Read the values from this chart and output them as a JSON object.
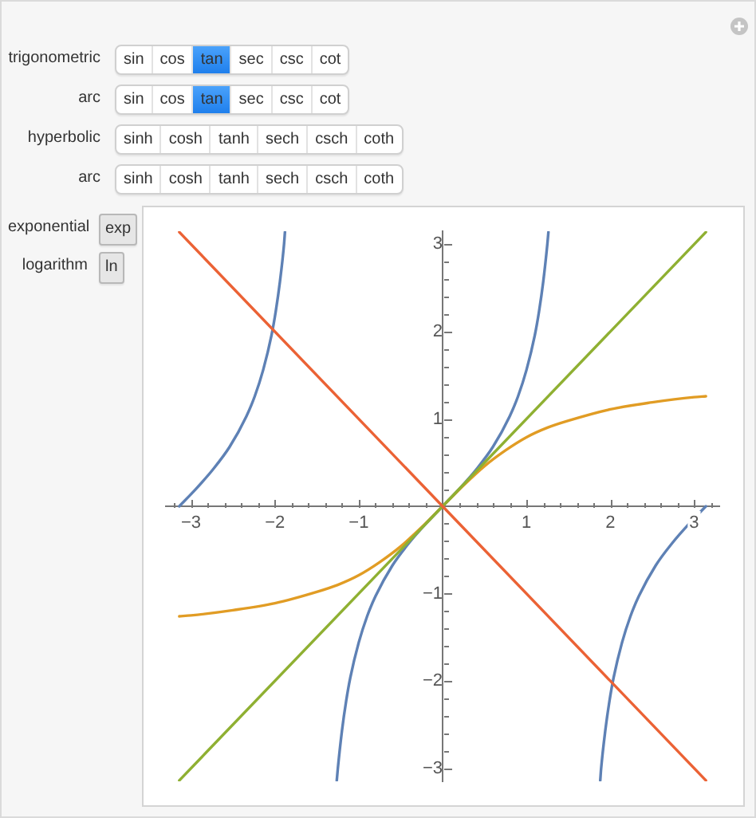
{
  "chart_data": [
    {
      "type": "other",
      "annotations": [
        "trigonometric",
        "sin",
        "cos",
        "tan",
        "sec",
        "csc",
        "cot",
        "arc",
        "sin",
        "cos",
        "tan",
        "sec",
        "csc",
        "cot",
        "hyperbolic",
        "sinh",
        "cosh",
        "tanh",
        "sech",
        "csch",
        "coth",
        "arc",
        "sinh",
        "cosh",
        "tanh",
        "sech",
        "csch",
        "coth",
        "exponential",
        "exp",
        "logarithm",
        "ln"
      ]
    },
    {
      "type": "line",
      "xlim": [
        -3.3,
        3.3
      ],
      "ylim": [
        -3.15,
        3.15
      ],
      "xticks": [
        {
          "value": -3.2,
          "label": null
        },
        {
          "value": -3,
          "label": "−3"
        },
        {
          "value": -2.8,
          "label": null
        },
        {
          "value": -2.6,
          "label": null
        },
        {
          "value": -2.4,
          "label": null
        },
        {
          "value": -2.2,
          "label": null
        },
        {
          "value": -2,
          "label": "−2"
        },
        {
          "value": -1.8,
          "label": null
        },
        {
          "value": -1.6,
          "label": null
        },
        {
          "value": -1.4,
          "label": null
        },
        {
          "value": -1.2,
          "label": null
        },
        {
          "value": -1,
          "label": "−1"
        },
        {
          "value": -0.8,
          "label": null
        },
        {
          "value": -0.6,
          "label": null
        },
        {
          "value": -0.4,
          "label": null
        },
        {
          "value": -0.2,
          "label": null
        },
        {
          "value": 0.2,
          "label": null
        },
        {
          "value": 0.4,
          "label": null
        },
        {
          "value": 0.6,
          "label": null
        },
        {
          "value": 0.8,
          "label": null
        },
        1,
        {
          "value": 1.2,
          "label": null
        },
        {
          "value": 1.4,
          "label": null
        },
        {
          "value": 1.6,
          "label": null
        },
        {
          "value": 1.8,
          "label": null
        },
        2,
        {
          "value": 2.2,
          "label": null
        },
        {
          "value": 2.4,
          "label": null
        },
        {
          "value": 2.6,
          "label": null
        },
        {
          "value": 2.8,
          "label": null
        },
        3,
        {
          "value": 3.2,
          "label": null
        }
      ],
      "yticks": [
        {
          "value": -3,
          "label": "−3"
        },
        {
          "value": -2.8,
          "label": null
        },
        {
          "value": -2.6,
          "label": null
        },
        {
          "value": -2.4,
          "label": null
        },
        {
          "value": -2.2,
          "label": null
        },
        {
          "value": -2,
          "label": "−2"
        },
        {
          "value": -1.8,
          "label": null
        },
        {
          "value": -1.6,
          "label": null
        },
        {
          "value": -1.4,
          "label": null
        },
        {
          "value": -1.2,
          "label": null
        },
        {
          "value": -1,
          "label": "−1"
        },
        {
          "value": -0.8,
          "label": null
        },
        {
          "value": -0.6,
          "label": null
        },
        {
          "value": -0.4,
          "label": null
        },
        {
          "value": -0.2,
          "label": null
        },
        {
          "value": 0.2,
          "label": null
        },
        {
          "value": 0.4,
          "label": null
        },
        {
          "value": 0.6,
          "label": null
        },
        {
          "value": 0.8,
          "label": null
        },
        1,
        {
          "value": 1.2,
          "label": null
        },
        {
          "value": 1.4,
          "label": null
        },
        {
          "value": 1.6,
          "label": null
        },
        {
          "value": 1.8,
          "label": null
        },
        2,
        {
          "value": 2.2,
          "label": null
        },
        {
          "value": 2.4,
          "label": null
        },
        {
          "value": 2.6,
          "label": null
        },
        {
          "value": 2.8,
          "label": null
        },
        3
      ],
      "series": [
        {
          "color": "#5e81b5",
          "x": [
            -3.14,
            -2.94,
            -2.74,
            -2.54,
            -2.34,
            -2.24,
            -2.14,
            -2.04,
            -1.99,
            -1.94,
            -1.89,
            -1.88,
            -1.57,
            -1.262,
            -1.25,
            -1.2,
            -1.15,
            -1.1,
            -1.0,
            -0.9,
            -0.8,
            -0.6,
            -0.4,
            -0.2,
            0,
            0.2,
            0.4,
            0.6,
            0.8,
            0.9,
            1.0,
            1.1,
            1.15,
            1.2,
            1.25,
            1.262,
            1.57,
            1.88,
            1.89,
            1.94,
            1.99,
            2.04,
            2.14,
            2.24,
            2.34,
            2.54,
            2.74,
            2.94,
            3.14
          ],
          "values": [
            0,
            0.2,
            0.42,
            0.68,
            1.03,
            1.26,
            1.56,
            1.96,
            2.23,
            2.57,
            3.01,
            3.14,
            null,
            -3.14,
            -3.01,
            -2.57,
            -2.23,
            -1.96,
            -1.56,
            -1.26,
            -1.03,
            -0.68,
            -0.42,
            -0.2,
            0,
            0.2,
            0.42,
            0.68,
            1.03,
            1.26,
            1.56,
            1.96,
            2.23,
            2.57,
            3.01,
            3.14,
            null,
            -3.14,
            -3.01,
            -2.57,
            -2.23,
            -1.96,
            -1.56,
            -1.26,
            -1.03,
            -0.68,
            -0.42,
            -0.2,
            0
          ]
        },
        {
          "color": "#e19c24",
          "x": [
            -3.14,
            -3,
            -2.5,
            -2,
            -1.5,
            -1.25,
            -1,
            -0.75,
            -0.5,
            -0.25,
            0,
            0.25,
            0.5,
            0.75,
            1,
            1.25,
            1.5,
            2,
            2.5,
            3,
            3.14
          ],
          "values": [
            -1.26,
            -1.25,
            -1.19,
            -1.11,
            -0.98,
            -0.9,
            -0.79,
            -0.64,
            -0.46,
            -0.24,
            0,
            0.24,
            0.46,
            0.64,
            0.79,
            0.9,
            0.98,
            1.11,
            1.19,
            1.25,
            1.26
          ]
        },
        {
          "color": "#8fb032",
          "x": [
            -3.14,
            3.14
          ],
          "values": [
            -3.14,
            3.14
          ]
        },
        {
          "color": "#eb6235",
          "x": [
            -3.14,
            3.14
          ],
          "values": [
            3.14,
            -3.14
          ]
        }
      ]
    }
  ]
}
